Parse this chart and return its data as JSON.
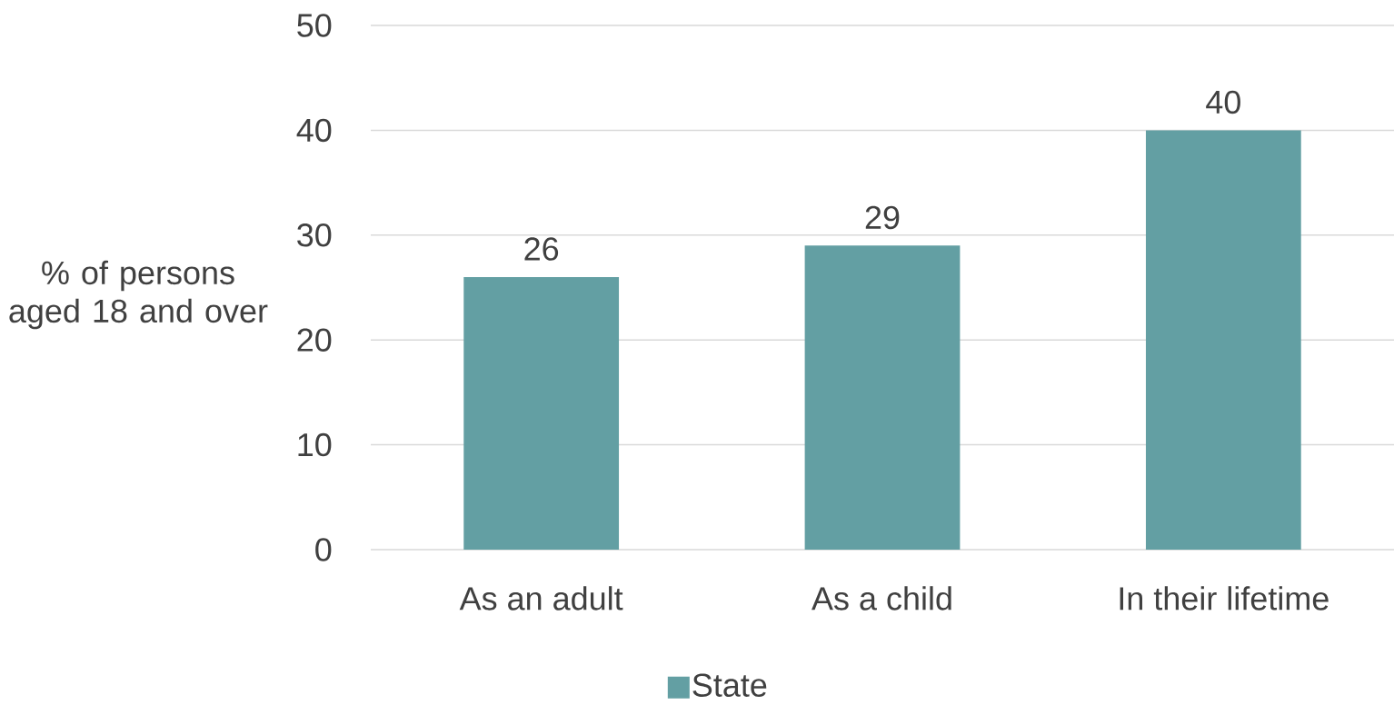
{
  "chart_data": {
    "type": "bar",
    "ylabel": "% of persons aged 18 and over",
    "categories": [
      "As an adult",
      "As a child",
      "In their lifetime"
    ],
    "series": [
      {
        "name": "State",
        "color": "#639fa3",
        "values": [
          26,
          29,
          40
        ]
      }
    ],
    "ylim": [
      0,
      50
    ],
    "yticks": [
      0,
      10,
      20,
      30,
      40,
      50
    ],
    "grid": "y",
    "legend": "bottom",
    "data_labels": true
  }
}
